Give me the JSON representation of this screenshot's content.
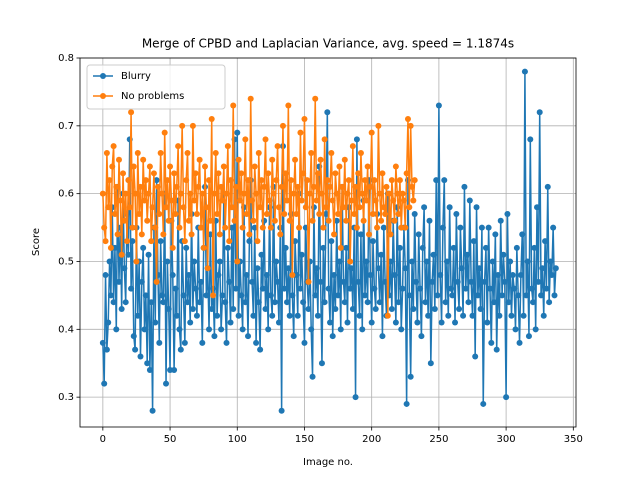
{
  "chart_data": {
    "type": "line",
    "title": "Merge of CPBD and Laplacian Variance, avg. speed = 1.1874s",
    "x_label": "Image no.",
    "y_label": "Score",
    "xlim": [
      -17,
      352
    ],
    "ylim": [
      0.256,
      0.8
    ],
    "xticks": [
      0,
      50,
      100,
      150,
      200,
      250,
      300,
      350
    ],
    "yticks": [
      0.3,
      0.4,
      0.5,
      0.6,
      0.7,
      0.8
    ],
    "grid": true,
    "legend": "upper left",
    "series": [
      {
        "name": "Blurry",
        "color": "#1f77b4",
        "values": [
          0.38,
          0.32,
          0.48,
          0.37,
          0.41,
          0.5,
          0.45,
          0.58,
          0.44,
          0.52,
          0.4,
          0.61,
          0.47,
          0.55,
          0.43,
          0.6,
          0.49,
          0.44,
          0.57,
          0.51,
          0.68,
          0.46,
          0.53,
          0.39,
          0.37,
          0.55,
          0.42,
          0.5,
          0.36,
          0.47,
          0.52,
          0.4,
          0.45,
          0.35,
          0.51,
          0.34,
          0.44,
          0.28,
          0.55,
          0.41,
          0.62,
          0.48,
          0.38,
          0.53,
          0.45,
          0.44,
          0.6,
          0.32,
          0.5,
          0.43,
          0.34,
          0.56,
          0.48,
          0.34,
          0.46,
          0.42,
          0.59,
          0.4,
          0.37,
          0.53,
          0.45,
          0.38,
          0.52,
          0.44,
          0.48,
          0.41,
          0.57,
          0.43,
          0.5,
          0.46,
          0.42,
          0.55,
          0.44,
          0.47,
          0.38,
          0.52,
          0.61,
          0.45,
          0.49,
          0.4,
          0.54,
          0.43,
          0.46,
          0.39,
          0.56,
          0.42,
          0.48,
          0.5,
          0.4,
          0.45,
          0.6,
          0.44,
          0.38,
          0.52,
          0.47,
          0.41,
          0.55,
          0.43,
          0.68,
          0.46,
          0.69,
          0.42,
          0.5,
          0.45,
          0.4,
          0.58,
          0.44,
          0.48,
          0.39,
          0.53,
          0.62,
          0.47,
          0.42,
          0.55,
          0.38,
          0.49,
          0.44,
          0.37,
          0.51,
          0.46,
          0.56,
          0.43,
          0.48,
          0.4,
          0.58,
          0.45,
          0.42,
          0.61,
          0.44,
          0.5,
          0.47,
          0.41,
          0.55,
          0.28,
          0.67,
          0.46,
          0.52,
          0.44,
          0.49,
          0.42,
          0.57,
          0.45,
          0.39,
          0.53,
          0.48,
          0.42,
          0.6,
          0.46,
          0.51,
          0.44,
          0.38,
          0.55,
          0.47,
          0.43,
          0.5,
          0.4,
          0.33,
          0.58,
          0.45,
          0.49,
          0.42,
          0.64,
          0.47,
          0.35,
          0.52,
          0.44,
          0.57,
          0.72,
          0.46,
          0.41,
          0.53,
          0.39,
          0.48,
          0.43,
          0.56,
          0.45,
          0.5,
          0.4,
          0.61,
          0.47,
          0.44,
          0.52,
          0.41,
          0.58,
          0.46,
          0.49,
          0.43,
          0.55,
          0.3,
          0.68,
          0.47,
          0.42,
          0.54,
          0.4,
          0.59,
          0.45,
          0.5,
          0.44,
          0.62,
          0.48,
          0.41,
          0.53,
          0.46,
          0.43,
          0.57,
          0.49,
          0.44,
          0.51,
          0.39,
          0.55,
          0.47,
          0.42,
          0.6,
          0.45,
          0.5,
          0.43,
          0.56,
          0.48,
          0.41,
          0.58,
          0.44,
          0.52,
          0.4,
          0.46,
          0.55,
          0.49,
          0.29,
          0.62,
          0.45,
          0.33,
          0.5,
          0.43,
          0.57,
          0.47,
          0.41,
          0.54,
          0.46,
          0.39,
          0.52,
          0.58,
          0.44,
          0.5,
          0.42,
          0.56,
          0.35,
          0.47,
          0.51,
          0.43,
          0.62,
          0.45,
          0.73,
          0.48,
          0.41,
          0.55,
          0.62,
          0.44,
          0.5,
          0.42,
          0.58,
          0.46,
          0.45,
          0.52,
          0.41,
          0.57,
          0.47,
          0.43,
          0.55,
          0.49,
          0.42,
          0.61,
          0.46,
          0.51,
          0.44,
          0.59,
          0.47,
          0.42,
          0.53,
          0.36,
          0.58,
          0.45,
          0.49,
          0.43,
          0.55,
          0.29,
          0.47,
          0.52,
          0.41,
          0.55,
          0.46,
          0.38,
          0.5,
          0.44,
          0.54,
          0.37,
          0.48,
          0.42,
          0.56,
          0.45,
          0.51,
          0.47,
          0.3,
          0.57,
          0.44,
          0.5,
          0.42,
          0.48,
          0.46,
          0.4,
          0.52,
          0.45,
          0.38,
          0.48,
          0.54,
          0.42,
          0.78,
          0.45,
          0.5,
          0.39,
          0.68,
          0.46,
          0.44,
          0.52,
          0.4,
          0.58,
          0.47,
          0.72,
          0.45,
          0.49,
          0.42,
          0.53,
          0.46,
          0.61,
          0.44,
          0.5,
          0.48,
          0.55,
          0.45,
          0.49
        ]
      },
      {
        "name": "No problems",
        "color": "#ff7f0e",
        "values": [
          0.6,
          0.55,
          0.53,
          0.66,
          0.58,
          0.62,
          0.52,
          0.64,
          0.67,
          0.57,
          0.61,
          0.54,
          0.65,
          0.59,
          0.51,
          0.63,
          0.56,
          0.6,
          0.53,
          0.62,
          0.58,
          0.72,
          0.55,
          0.64,
          0.6,
          0.5,
          0.66,
          0.57,
          0.61,
          0.54,
          0.65,
          0.59,
          0.62,
          0.56,
          0.6,
          0.64,
          0.53,
          0.58,
          0.63,
          0.55,
          0.47,
          0.61,
          0.57,
          0.66,
          0.6,
          0.54,
          0.69,
          0.58,
          0.62,
          0.56,
          0.64,
          0.59,
          0.52,
          0.63,
          0.57,
          0.61,
          0.67,
          0.55,
          0.6,
          0.7,
          0.58,
          0.53,
          0.62,
          0.66,
          0.56,
          0.6,
          0.54,
          0.7,
          0.59,
          0.63,
          0.57,
          0.61,
          0.65,
          0.55,
          0.6,
          0.52,
          0.64,
          0.58,
          0.49,
          0.62,
          0.56,
          0.71,
          0.45,
          0.6,
          0.66,
          0.57,
          0.63,
          0.54,
          0.61,
          0.59,
          0.64,
          0.55,
          0.6,
          0.67,
          0.53,
          0.62,
          0.58,
          0.73,
          0.56,
          0.61,
          0.5,
          0.65,
          0.59,
          0.63,
          0.55,
          0.6,
          0.68,
          0.57,
          0.62,
          0.54,
          0.74,
          0.59,
          0.56,
          0.64,
          0.6,
          0.53,
          0.66,
          0.58,
          0.62,
          0.55,
          0.61,
          0.68,
          0.57,
          0.63,
          0.59,
          0.55,
          0.65,
          0.6,
          0.56,
          0.62,
          0.67,
          0.58,
          0.54,
          0.61,
          0.7,
          0.57,
          0.63,
          0.59,
          0.73,
          0.56,
          0.62,
          0.48,
          0.6,
          0.65,
          0.57,
          0.61,
          0.55,
          0.69,
          0.59,
          0.63,
          0.71,
          0.58,
          0.62,
          0.47,
          0.6,
          0.66,
          0.56,
          0.61,
          0.74,
          0.59,
          0.63,
          0.57,
          0.65,
          0.6,
          0.55,
          0.68,
          0.58,
          0.62,
          0.56,
          0.61,
          0.66,
          0.59,
          0.54,
          0.63,
          0.6,
          0.57,
          0.64,
          0.52,
          0.61,
          0.58,
          0.65,
          0.56,
          0.6,
          0.62,
          0.5,
          0.59,
          0.67,
          0.57,
          0.61,
          0.55,
          0.63,
          0.58,
          0.66,
          0.6,
          0.56,
          0.62,
          0.59,
          0.64,
          0.54,
          0.61,
          0.69,
          0.57,
          0.62,
          0.59,
          0.55,
          0.7,
          0.6,
          0.56,
          0.63,
          0.58,
          0.57,
          0.61,
          0.42,
          0.6,
          0.54,
          0.62,
          0.59,
          0.56,
          0.64,
          0.6,
          0.57,
          0.62,
          0.55,
          0.6,
          0.59,
          0.55,
          0.63,
          0.71,
          0.58,
          0.7,
          0.61,
          0.59,
          0.62
        ]
      }
    ]
  }
}
